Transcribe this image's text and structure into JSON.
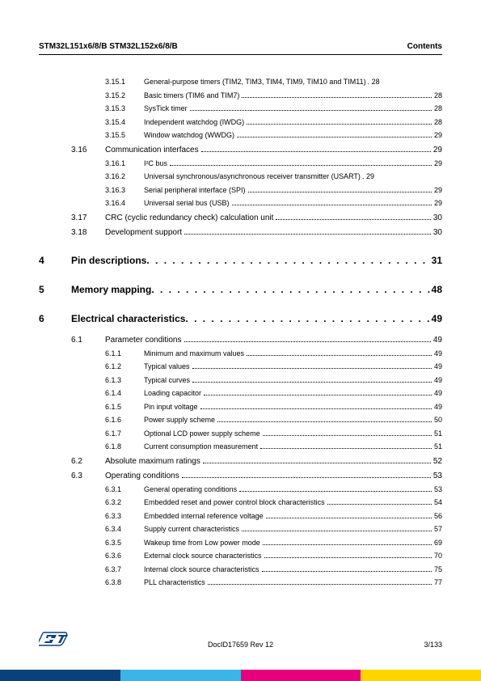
{
  "header": {
    "left": "STM32L151x6/8/B STM32L152x6/8/B",
    "right": "Contents"
  },
  "toc": [
    {
      "type": "sub",
      "chap": "",
      "sec": "",
      "sub": "3.15.1",
      "title": "General-purpose timers (TIM2, TIM3, TIM4, TIM9, TIM10 and TIM11)",
      "page": "28",
      "nodots": true
    },
    {
      "type": "sub",
      "chap": "",
      "sec": "",
      "sub": "3.15.2",
      "title": "Basic timers (TIM6 and TIM7)",
      "page": "28"
    },
    {
      "type": "sub",
      "chap": "",
      "sec": "",
      "sub": "3.15.3",
      "title": "SysTick timer",
      "page": "28"
    },
    {
      "type": "sub",
      "chap": "",
      "sec": "",
      "sub": "3.15.4",
      "title": "Independent watchdog (IWDG)",
      "page": "28"
    },
    {
      "type": "sub",
      "chap": "",
      "sec": "",
      "sub": "3.15.5",
      "title": "Window watchdog (WWDG)",
      "page": "29"
    },
    {
      "type": "section",
      "chap": "",
      "sec": "3.16",
      "title": "Communication interfaces",
      "page": "29"
    },
    {
      "type": "sub",
      "chap": "",
      "sec": "",
      "sub": "3.16.1",
      "title": "I²C bus",
      "page": "29"
    },
    {
      "type": "sub",
      "chap": "",
      "sec": "",
      "sub": "3.16.2",
      "title": "Universal synchronous/asynchronous receiver transmitter (USART)",
      "page": "29",
      "nodots": true
    },
    {
      "type": "sub",
      "chap": "",
      "sec": "",
      "sub": "3.16.3",
      "title": "Serial peripheral interface (SPI)",
      "page": "29"
    },
    {
      "type": "sub",
      "chap": "",
      "sec": "",
      "sub": "3.16.4",
      "title": "Universal serial bus (USB)",
      "page": "29"
    },
    {
      "type": "section",
      "chap": "",
      "sec": "3.17",
      "title": "CRC (cyclic redundancy check) calculation unit",
      "page": "30"
    },
    {
      "type": "section",
      "chap": "",
      "sec": "3.18",
      "title": "Development support",
      "page": "30"
    },
    {
      "type": "chapter",
      "chap": "4",
      "title": "Pin descriptions",
      "page": "31"
    },
    {
      "type": "chapter",
      "chap": "5",
      "title": "Memory mapping",
      "page": "48"
    },
    {
      "type": "chapter",
      "chap": "6",
      "title": "Electrical characteristics",
      "page": "49"
    },
    {
      "type": "section",
      "chap": "",
      "sec": "6.1",
      "title": "Parameter conditions",
      "page": "49"
    },
    {
      "type": "sub",
      "chap": "",
      "sec": "",
      "sub": "6.1.1",
      "title": "Minimum and maximum values",
      "page": "49"
    },
    {
      "type": "sub",
      "chap": "",
      "sec": "",
      "sub": "6.1.2",
      "title": "Typical values",
      "page": "49"
    },
    {
      "type": "sub",
      "chap": "",
      "sec": "",
      "sub": "6.1.3",
      "title": "Typical curves",
      "page": "49"
    },
    {
      "type": "sub",
      "chap": "",
      "sec": "",
      "sub": "6.1.4",
      "title": "Loading capacitor",
      "page": "49"
    },
    {
      "type": "sub",
      "chap": "",
      "sec": "",
      "sub": "6.1.5",
      "title": "Pin input voltage",
      "page": "49"
    },
    {
      "type": "sub",
      "chap": "",
      "sec": "",
      "sub": "6.1.6",
      "title": "Power supply scheme",
      "page": "50"
    },
    {
      "type": "sub",
      "chap": "",
      "sec": "",
      "sub": "6.1.7",
      "title": "Optional LCD power supply scheme",
      "page": "51"
    },
    {
      "type": "sub",
      "chap": "",
      "sec": "",
      "sub": "6.1.8",
      "title": "Current consumption measurement",
      "page": "51"
    },
    {
      "type": "section",
      "chap": "",
      "sec": "6.2",
      "title": "Absolute maximum ratings",
      "page": "52"
    },
    {
      "type": "section",
      "chap": "",
      "sec": "6.3",
      "title": "Operating conditions",
      "page": "53"
    },
    {
      "type": "sub",
      "chap": "",
      "sec": "",
      "sub": "6.3.1",
      "title": "General operating conditions",
      "page": "53"
    },
    {
      "type": "sub",
      "chap": "",
      "sec": "",
      "sub": "6.3.2",
      "title": "Embedded reset and power control block characteristics",
      "page": "54"
    },
    {
      "type": "sub",
      "chap": "",
      "sec": "",
      "sub": "6.3.3",
      "title": "Embedded internal reference voltage",
      "page": "56"
    },
    {
      "type": "sub",
      "chap": "",
      "sec": "",
      "sub": "6.3.4",
      "title": "Supply current characteristics",
      "page": "57"
    },
    {
      "type": "sub",
      "chap": "",
      "sec": "",
      "sub": "6.3.5",
      "title": "Wakeup time from Low power mode",
      "page": "69"
    },
    {
      "type": "sub",
      "chap": "",
      "sec": "",
      "sub": "6.3.6",
      "title": "External clock source characteristics",
      "page": "70"
    },
    {
      "type": "sub",
      "chap": "",
      "sec": "",
      "sub": "6.3.7",
      "title": "Internal clock source characteristics",
      "page": "75"
    },
    {
      "type": "sub",
      "chap": "",
      "sec": "",
      "sub": "6.3.8",
      "title": "PLL characteristics",
      "page": "77"
    }
  ],
  "footer": {
    "doc_id": "DocID17659 Rev 12",
    "page_num": "3/133"
  },
  "colors": {
    "bar": [
      "#0a417a",
      "#3cb4e6",
      "#e6007e",
      "#ffd500"
    ]
  }
}
